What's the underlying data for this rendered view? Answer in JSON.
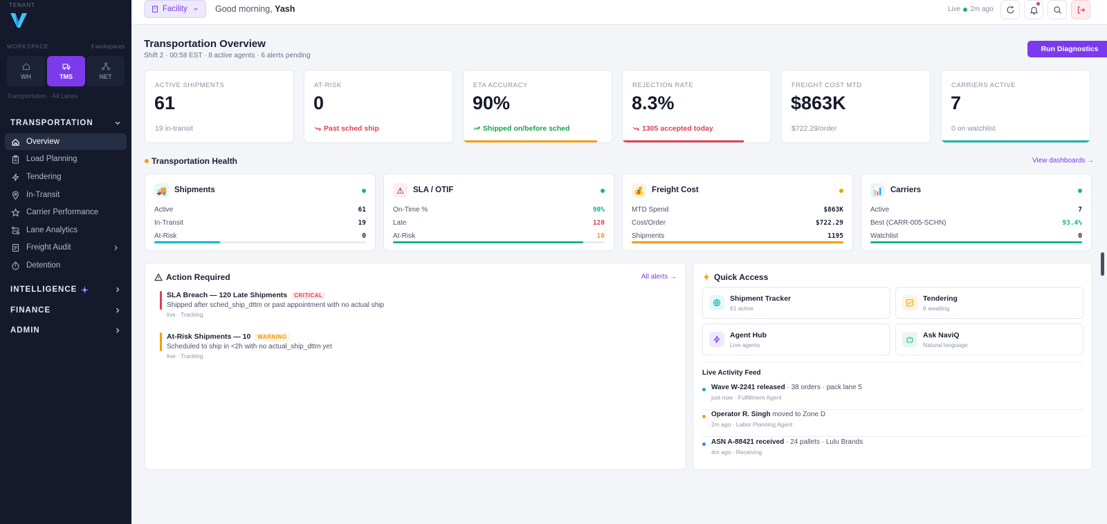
{
  "sidebar": {
    "tenant_label": "TENANT",
    "workspace_label": "WORKSPACE",
    "workspace_count": "3 workspaces",
    "workspaces": [
      {
        "label": "WH",
        "icon": "home-icon"
      },
      {
        "label": "TMS",
        "icon": "truck-icon",
        "active": true
      },
      {
        "label": "NET",
        "icon": "network-icon"
      }
    ],
    "sub_label": "Transportation · All Lanes",
    "sections": {
      "transportation": "TRANSPORTATION",
      "intelligence": "INTELLIGENCE",
      "finance": "FINANCE",
      "admin": "ADMIN"
    },
    "nav": [
      {
        "label": "Overview",
        "icon": "home-icon",
        "active": true
      },
      {
        "label": "Load Planning",
        "icon": "clipboard-icon"
      },
      {
        "label": "Tendering",
        "icon": "bolt-icon"
      },
      {
        "label": "In-Transit",
        "icon": "map-pin-icon"
      },
      {
        "label": "Carrier Performance",
        "icon": "star-icon"
      },
      {
        "label": "Lane Analytics",
        "icon": "route-icon"
      },
      {
        "label": "Freight Audit",
        "icon": "receipt-icon",
        "has_children": true
      },
      {
        "label": "Detention",
        "icon": "timer-icon"
      }
    ]
  },
  "header": {
    "facility_label": "Facility",
    "greeting": "Good morning,",
    "user": "Yash",
    "live_label": "Live",
    "live_time": "2m ago"
  },
  "page": {
    "title": "Transportation Overview",
    "subtitle": "Shift 2 · 00:58 EST · 8 active agents · 6 alerts pending",
    "run_button": "Run Diagnostics"
  },
  "kpis": [
    {
      "label": "ACTIVE SHIPMENTS",
      "value": "61",
      "sub": "19 in-transit",
      "tone": "neutral",
      "bar_pct": 0,
      "bar_color": ""
    },
    {
      "label": "AT-RISK",
      "value": "0",
      "sub": "Past sched ship",
      "tone": "red",
      "bar_pct": 0,
      "bar_color": ""
    },
    {
      "label": "ETA ACCURACY",
      "value": "90%",
      "sub": "Shipped on/before sched",
      "tone": "green",
      "bar_pct": 90,
      "bar_color": "#f59e0b"
    },
    {
      "label": "REJECTION RATE",
      "value": "8.3%",
      "sub": "1305 accepted today",
      "tone": "red",
      "bar_pct": 82,
      "bar_color": "#e0404f"
    },
    {
      "label": "FREIGHT COST MTD",
      "value": "$863K",
      "sub": "$722.29/order",
      "tone": "neutral",
      "bar_pct": 0,
      "bar_color": ""
    },
    {
      "label": "CARRIERS ACTIVE",
      "value": "7",
      "sub": "0 on watchlist",
      "tone": "neutral",
      "bar_pct": 100,
      "bar_color": "#14b8a6"
    }
  ],
  "health": {
    "title": "Transportation Health",
    "link": "View dashboards →",
    "cards": [
      {
        "title": "Shipments",
        "emoji": "🚚",
        "icon_bg": "#e6f7f7",
        "status_color": "#10b981",
        "rows": [
          {
            "k": "Active",
            "v": "61",
            "c": "#1a1f33"
          },
          {
            "k": "In-Transit",
            "v": "19",
            "c": "#1a1f33"
          },
          {
            "k": "At-Risk",
            "v": "0",
            "c": "#1a1f33"
          }
        ],
        "fill_pct": 31,
        "fill_color": "#06b6d4"
      },
      {
        "title": "SLA / OTIF",
        "emoji": "⚠",
        "icon_bg": "#fdecec",
        "status_color": "#10b981",
        "rows": [
          {
            "k": "On-Time %",
            "v": "90%",
            "c": "#10b981"
          },
          {
            "k": "Late",
            "v": "120",
            "c": "#e0404f"
          },
          {
            "k": "At-Risk",
            "v": "10",
            "c": "#f59e0b"
          }
        ],
        "fill_pct": 90,
        "fill_color": "#10b981"
      },
      {
        "title": "Freight Cost",
        "emoji": "💰",
        "icon_bg": "#fbf3e3",
        "status_color": "#f59e0b",
        "rows": [
          {
            "k": "MTD Spend",
            "v": "$863K",
            "c": "#1a1f33"
          },
          {
            "k": "Cost/Order",
            "v": "$722.29",
            "c": "#1a1f33"
          },
          {
            "k": "Shipments",
            "v": "1195",
            "c": "#1a1f33"
          }
        ],
        "fill_pct": 100,
        "fill_color": "#f59e0b"
      },
      {
        "title": "Carriers",
        "emoji": "📊",
        "icon_bg": "#e9f5ff",
        "status_color": "#10b981",
        "rows": [
          {
            "k": "Active",
            "v": "7",
            "c": "#1a1f33"
          },
          {
            "k": "Best (CARR-005-SCHN)",
            "v": "93.4%",
            "c": "#10b981"
          },
          {
            "k": "Watchlist",
            "v": "0",
            "c": "#1a1f33"
          }
        ],
        "fill_pct": 100,
        "fill_color": "#10b981"
      }
    ]
  },
  "actions": {
    "title": "Action Required",
    "link": "All alerts →",
    "alerts": [
      {
        "title": "SLA Breach — 120 Late Shipments",
        "badge": "CRITICAL",
        "badge_color": "#e0404f",
        "badge_bg": "#fdecee",
        "desc": "Shipped after sched_ship_dttm or past appointment with no actual ship",
        "meta": "live · Tracking",
        "rail": "#e0404f"
      },
      {
        "title": "At-Risk Shipments — 10",
        "badge": "WARNING",
        "badge_color": "#e59a0b",
        "badge_bg": "#fdf3e1",
        "desc": "Scheduled to ship in <2h with no actual_ship_dttm yet",
        "meta": "live · Tracking",
        "rail": "#f59e0b"
      }
    ]
  },
  "quick_access": {
    "title": "Quick Access",
    "items": [
      {
        "title": "Shipment Tracker",
        "sub": "61 active",
        "icon": "globe-icon",
        "bg": "#e6f7f7",
        "fg": "#14b8a6"
      },
      {
        "title": "Tendering",
        "sub": "6 awaiting",
        "icon": "check-square-icon",
        "bg": "#fdf3e1",
        "fg": "#f59e0b"
      },
      {
        "title": "Agent Hub",
        "sub": "Live agents",
        "icon": "bolt-icon",
        "bg": "#efeafd",
        "fg": "#7c3aed"
      },
      {
        "title": "Ask NaviQ",
        "sub": "Natural language",
        "icon": "bot-icon",
        "bg": "#e7f7ee",
        "fg": "#10b981"
      }
    ],
    "feed_title": "Live Activity Feed",
    "feed": [
      {
        "bold": "Wave W-2241 released",
        "text": " · 38 orders · pack lane 5",
        "meta": "just now · Fulfillment Agent",
        "color": "#10b981"
      },
      {
        "bold": "Operator R. Singh",
        "text": " moved to Zone D",
        "meta": "2m ago · Labor Planning Agent",
        "color": "#f59e0b"
      },
      {
        "bold": "ASN A-88421 received",
        "text": " · 24 pallets · Lulu Brands",
        "meta": "4m ago · Receiving",
        "color": "#3b82f6"
      }
    ]
  }
}
